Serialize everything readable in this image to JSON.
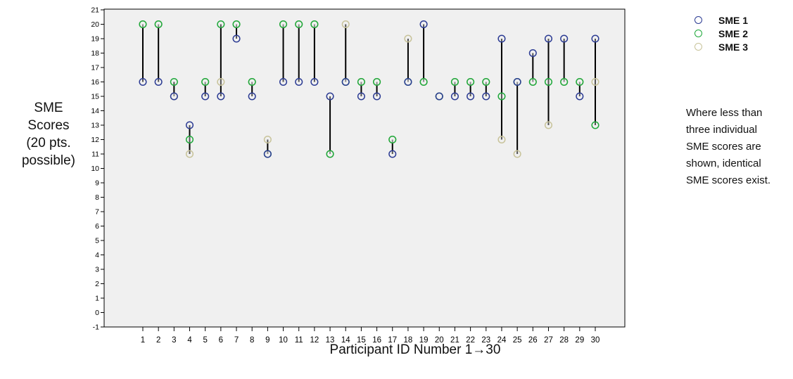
{
  "chart_data": {
    "type": "scatter",
    "ylabel_lines": [
      "SME",
      "Scores",
      "(20 pts.",
      "possible)"
    ],
    "xlabel": "Participant ID Number 1→30",
    "x": [
      1,
      2,
      3,
      4,
      5,
      6,
      7,
      8,
      9,
      10,
      11,
      12,
      13,
      14,
      15,
      16,
      17,
      18,
      19,
      20,
      21,
      22,
      23,
      24,
      25,
      26,
      27,
      28,
      29,
      30
    ],
    "xticks": [
      "1",
      "2",
      "3",
      "4",
      "5",
      "6",
      "7",
      "8",
      "9",
      "10",
      "11",
      "12",
      "13",
      "14",
      "15",
      "16",
      "17",
      "18",
      "19",
      "20",
      "21",
      "22",
      "23",
      "24",
      "25",
      "26",
      "27",
      "28",
      "29",
      "30"
    ],
    "yticks": [
      "-1",
      "0",
      "1",
      "2",
      "3",
      "4",
      "5",
      "6",
      "7",
      "8",
      "9",
      "10",
      "11",
      "12",
      "13",
      "14",
      "15",
      "16",
      "17",
      "18",
      "19",
      "20",
      "21"
    ],
    "ylim": [
      -1,
      21
    ],
    "grid": false,
    "legend_position": "top-right",
    "series": [
      {
        "name": "SME 1",
        "color": "#2b3b93",
        "values": [
          16,
          16,
          15,
          13,
          15,
          15,
          19,
          15,
          11,
          16,
          16,
          16,
          15,
          16,
          15,
          15,
          11,
          16,
          20,
          15,
          15,
          15,
          15,
          19,
          16,
          18,
          19,
          19,
          15,
          19
        ]
      },
      {
        "name": "SME 2",
        "color": "#1ea83a",
        "values": [
          20,
          20,
          16,
          12,
          16,
          20,
          20,
          16,
          11,
          20,
          20,
          20,
          11,
          16,
          16,
          16,
          12,
          16,
          16,
          15,
          16,
          16,
          16,
          15,
          16,
          16,
          16,
          16,
          16,
          13
        ]
      },
      {
        "name": "SME 3",
        "color": "#c8c39a",
        "values": [
          20,
          20,
          15,
          11,
          16,
          16,
          20,
          16,
          12,
          20,
          20,
          20,
          11,
          20,
          16,
          16,
          12,
          19,
          16,
          15,
          16,
          16,
          16,
          12,
          11,
          16,
          13,
          16,
          16,
          16
        ]
      }
    ],
    "note_lines": [
      "Where less than",
      "three individual",
      "SME scores are",
      "shown, identical",
      "SME scores exist."
    ]
  }
}
